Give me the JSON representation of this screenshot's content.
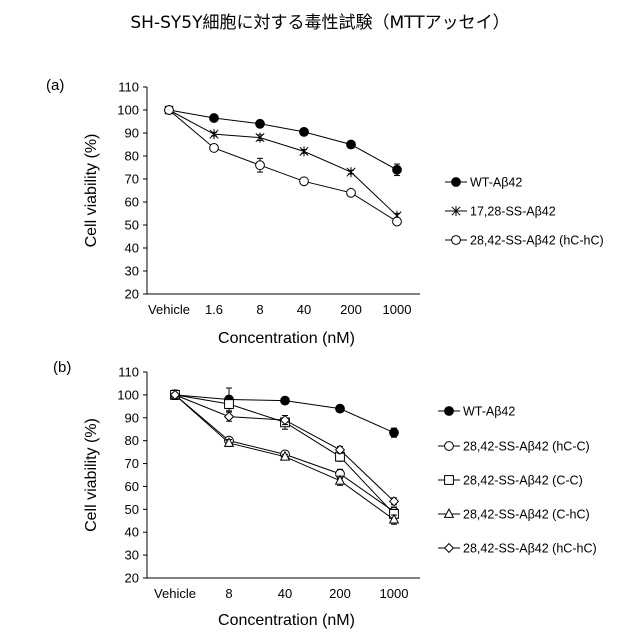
{
  "page_title": "SH-SY5Y細胞に対する毒性試験（MTTアッセイ）",
  "chart_data": [
    {
      "panel": "(a)",
      "type": "line",
      "xlabel": "Concentration (nM)",
      "ylabel": "Cell viability (%)",
      "categories": [
        "Vehicle",
        "1.6",
        "8",
        "40",
        "200",
        "1000"
      ],
      "ylim": [
        20,
        110
      ],
      "yticks": [
        20,
        30,
        40,
        50,
        60,
        70,
        80,
        90,
        100,
        110
      ],
      "grid": false,
      "legend_position": "right",
      "series": [
        {
          "name": "WT-Aβ42",
          "marker": "filled-circle",
          "values": [
            100,
            96.5,
            94,
            90.5,
            85,
            74
          ],
          "errors": [
            1.5,
            0.8,
            1.5,
            0.8,
            0.8,
            2.5
          ]
        },
        {
          "name": "17,28-SS-Aβ42",
          "marker": "asterisk",
          "values": [
            100,
            89.5,
            88,
            82,
            73,
            54
          ],
          "errors": [
            1.5,
            0.8,
            1.2,
            0.8,
            0.8,
            1
          ]
        },
        {
          "name": "28,42-SS-Aβ42 (hC-hC)",
          "marker": "open-circle",
          "values": [
            100,
            83.5,
            76,
            69,
            64,
            51.5
          ],
          "errors": [
            1.5,
            1,
            3,
            1,
            0.8,
            1.5
          ]
        }
      ]
    },
    {
      "panel": "(b)",
      "type": "line",
      "xlabel": "Concentration (nM)",
      "ylabel": "Cell viability (%)",
      "categories": [
        "Vehicle",
        "8",
        "40",
        "200",
        "1000"
      ],
      "ylim": [
        20,
        110
      ],
      "yticks": [
        20,
        30,
        40,
        50,
        60,
        70,
        80,
        90,
        100,
        110
      ],
      "grid": false,
      "legend_position": "right",
      "series": [
        {
          "name": "WT-Aβ42",
          "marker": "filled-circle",
          "values": [
            100,
            98,
            97.5,
            94,
            83.5
          ],
          "errors": [
            2,
            5,
            1,
            1,
            2
          ]
        },
        {
          "name": "28,42-SS-Aβ42 (hC-C)",
          "marker": "open-circle",
          "values": [
            100,
            80,
            74,
            65.5,
            49
          ],
          "errors": [
            2,
            1.5,
            1,
            2,
            2
          ]
        },
        {
          "name": "28,42-SS-Aβ42 (C-C)",
          "marker": "open-square",
          "values": [
            100,
            96,
            88,
            73,
            48
          ],
          "errors": [
            2,
            2,
            3,
            2,
            2
          ]
        },
        {
          "name": "28,42-SS-Aβ42 (C-hC)",
          "marker": "open-triangle",
          "values": [
            100,
            79,
            73,
            62.5,
            45.5
          ],
          "errors": [
            2,
            1.5,
            1,
            2,
            2
          ]
        },
        {
          "name": "28,42-SS-Aβ42 (hC-hC)",
          "marker": "open-diamond",
          "values": [
            100,
            90.5,
            89,
            76,
            53.5
          ],
          "errors": [
            2,
            2,
            2,
            1.5,
            1.5
          ]
        }
      ]
    }
  ]
}
